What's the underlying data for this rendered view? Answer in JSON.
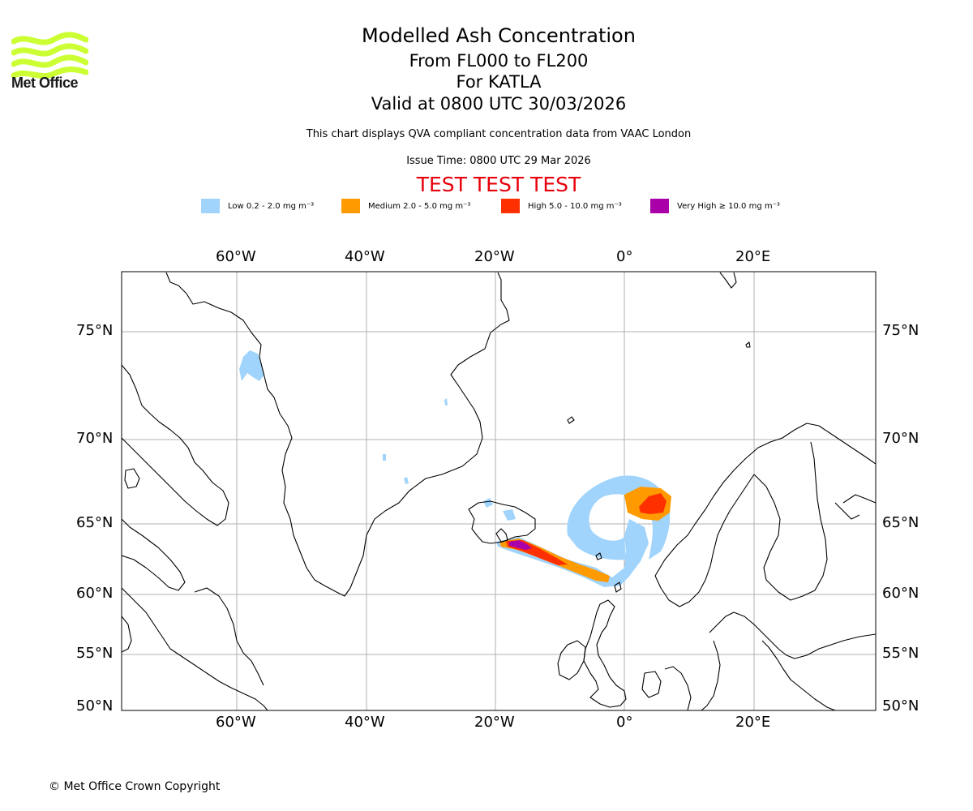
{
  "logo": {
    "text": "Met Office",
    "color": "#ccff33"
  },
  "header": {
    "title": "Modelled Ash Concentration",
    "levels": "From FL000 to FL200",
    "volcano": "For KATLA",
    "valid": "Valid at 0800 UTC 30/03/2026",
    "description": "This chart displays QVA compliant concentration data from VAAC London",
    "issue": "Issue Time: 0800 UTC 29 Mar 2026",
    "test": "TEST TEST TEST",
    "test_color": "#e8000b"
  },
  "legend": [
    {
      "label": "Low 0.2 - 2.0 mg m⁻³",
      "color": "#a0d4fc"
    },
    {
      "label": "Medium 2.0 - 5.0 mg m⁻³",
      "color": "#ff9a00"
    },
    {
      "label": "High 5.0 - 10.0 mg m⁻³",
      "color": "#ff3000"
    },
    {
      "label": "Very High ≥ 10.0 mg m⁻³",
      "color": "#aa00aa"
    }
  ],
  "map": {
    "lon_ticks": [
      "60°W",
      "40°W",
      "20°W",
      "0°",
      "20°E"
    ],
    "lat_ticks": [
      "75°N",
      "70°N",
      "65°N",
      "60°N",
      "55°N",
      "50°N"
    ],
    "gridlines": true
  },
  "footer": {
    "copyright": "© Met Office Crown Copyright"
  }
}
